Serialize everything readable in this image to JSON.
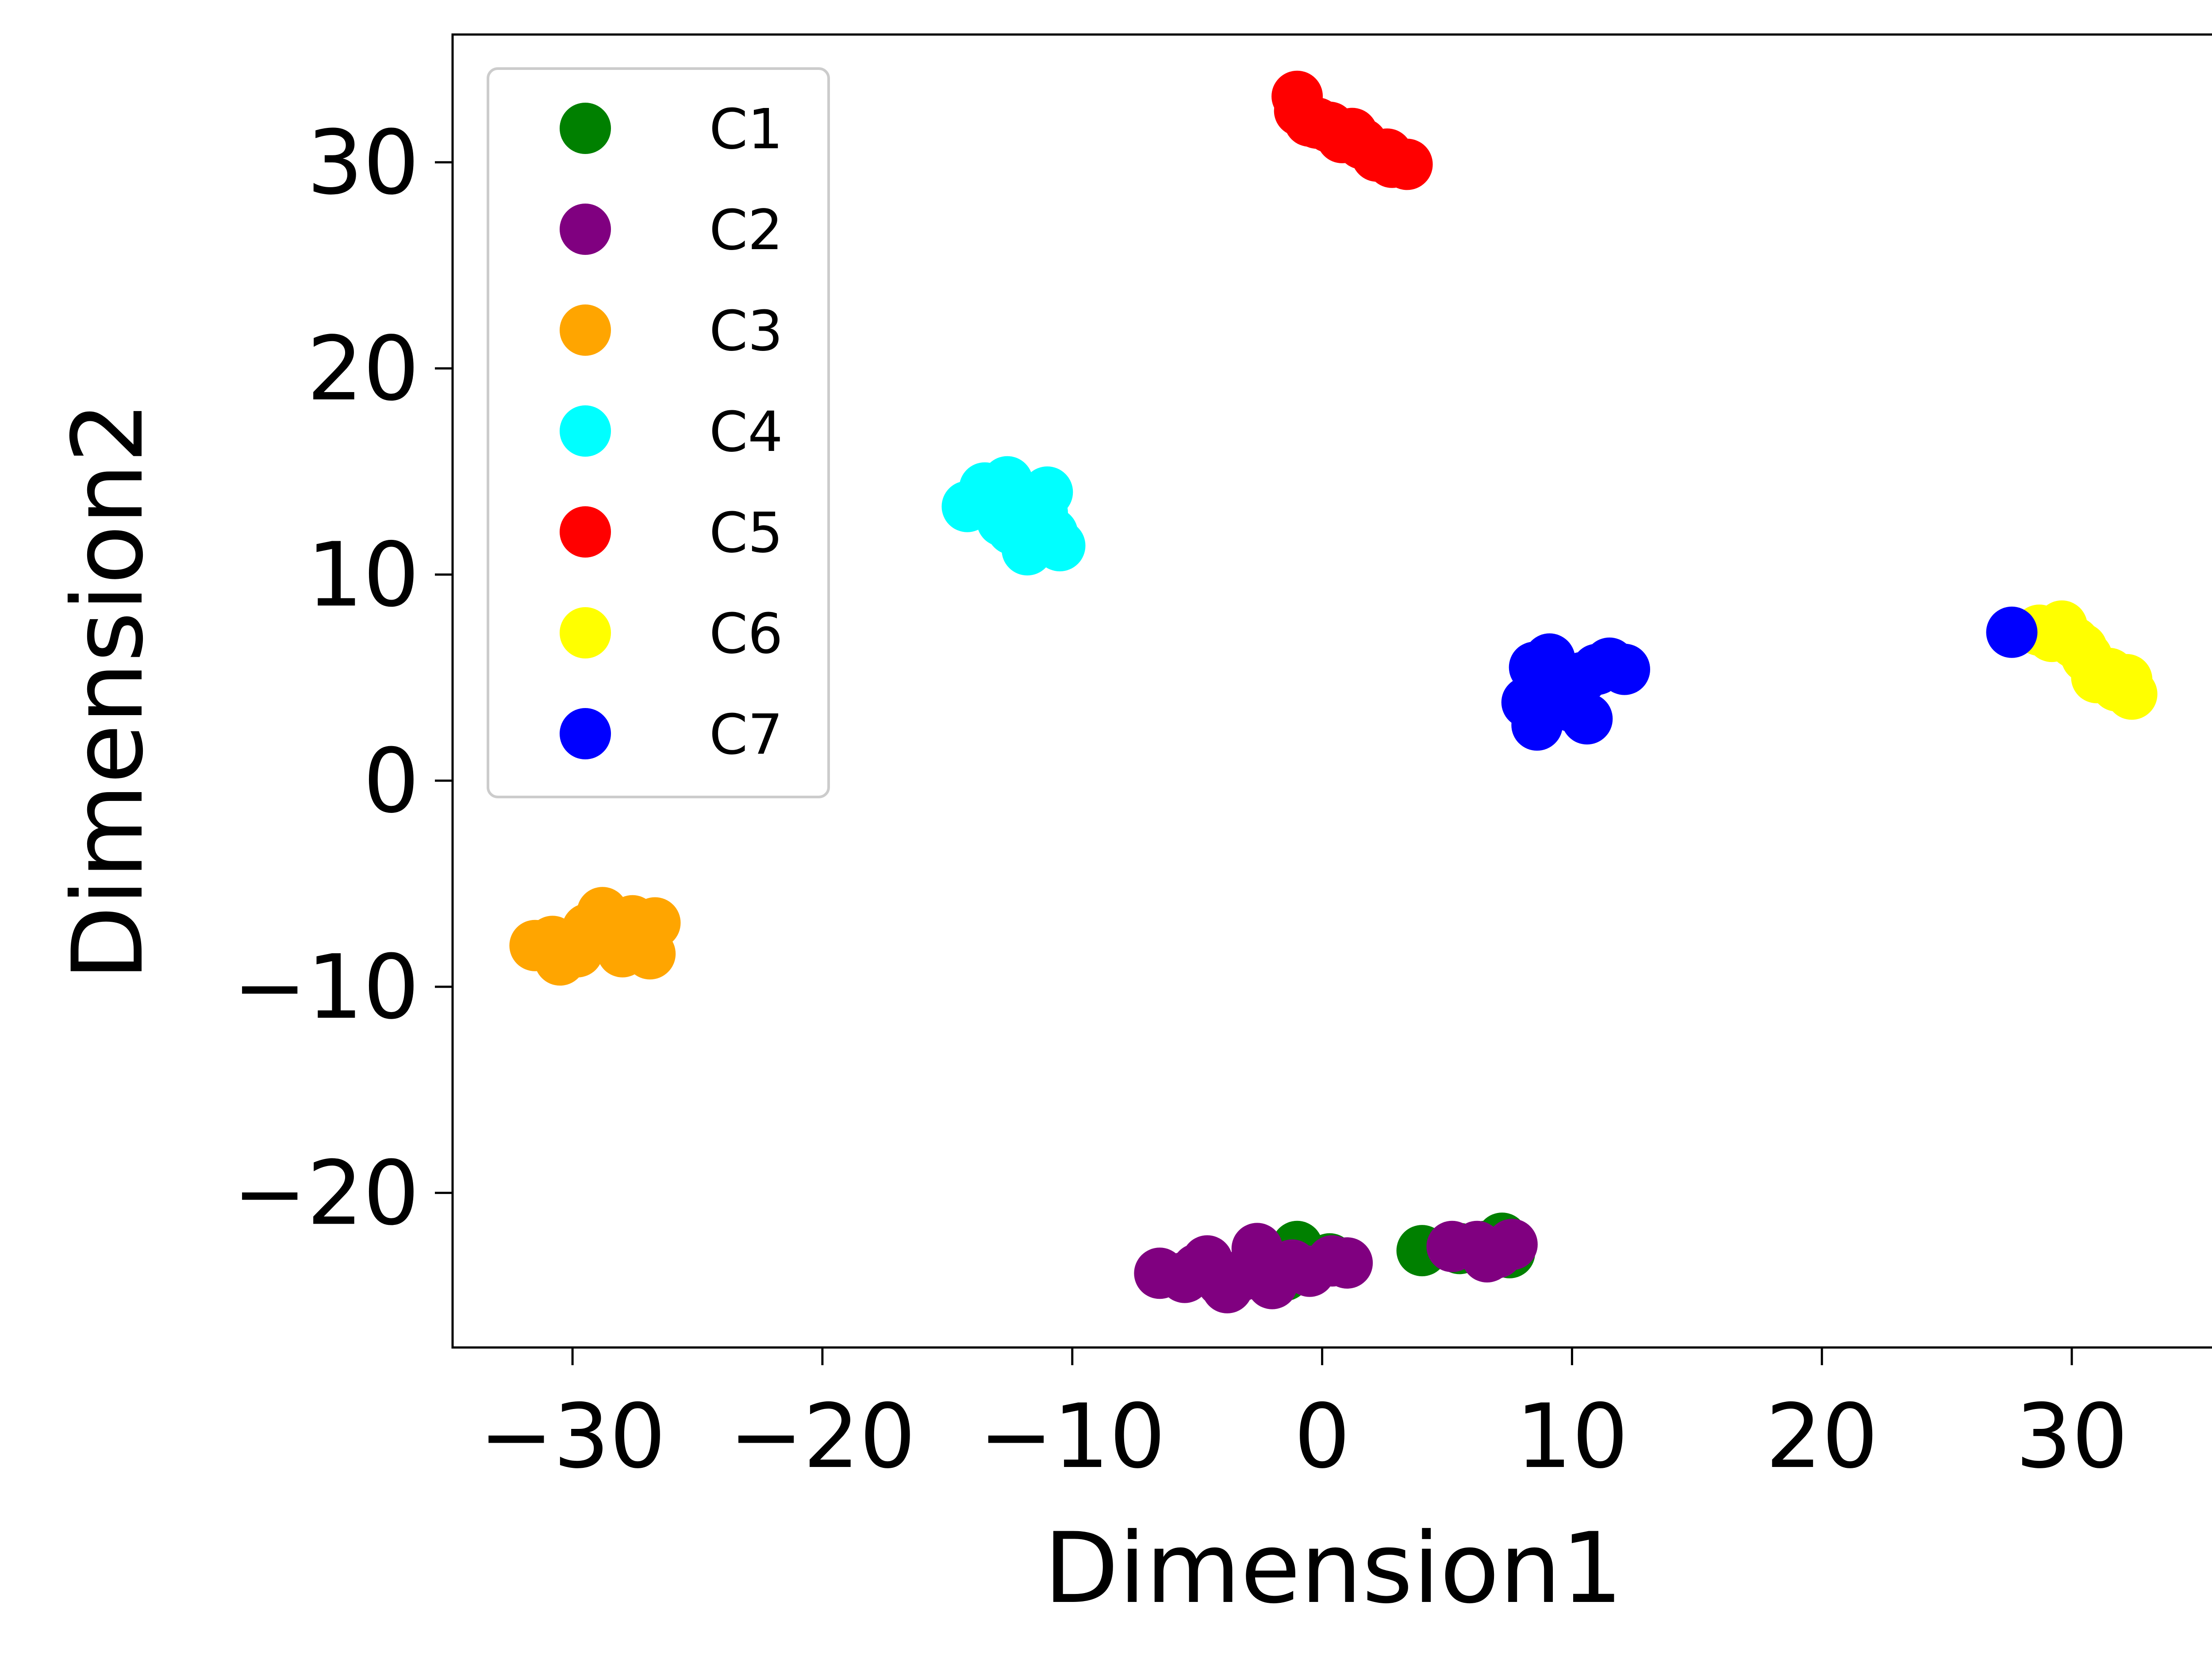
{
  "chart_data": {
    "type": "scatter",
    "xlabel": "Dimension1",
    "ylabel": "Dimension2",
    "xlim": [
      -34.8,
      35.7
    ],
    "ylim": [
      -27.5,
      36.2
    ],
    "xticks": [
      -30,
      -20,
      -10,
      0,
      10,
      20,
      30
    ],
    "xtick_labels": [
      "−30",
      "−20",
      "−10",
      "0",
      "10",
      "20",
      "30"
    ],
    "yticks": [
      -20,
      -10,
      0,
      10,
      20,
      30
    ],
    "ytick_labels": [
      "−20",
      "−10",
      "0",
      "10",
      "20",
      "30"
    ],
    "grid": false,
    "legend_position": "top-left",
    "series": [
      {
        "name": "C1",
        "color": "#008000",
        "points": [
          [
            -1.0,
            -22.6
          ],
          [
            -1.5,
            -24.0
          ],
          [
            -0.5,
            -23.4
          ],
          [
            0.3,
            -23.2
          ],
          [
            -2.0,
            -24.3
          ],
          [
            4.0,
            -22.8
          ],
          [
            5.5,
            -22.7
          ],
          [
            7.2,
            -22.2
          ],
          [
            7.5,
            -22.9
          ],
          [
            6.5,
            -22.6
          ]
        ]
      },
      {
        "name": "C2",
        "color": "#800080",
        "points": [
          [
            -6.5,
            -23.9
          ],
          [
            -5.5,
            -24.1
          ],
          [
            -4.6,
            -23.3
          ],
          [
            -4.0,
            -24.3
          ],
          [
            -3.2,
            -24.0
          ],
          [
            -2.6,
            -22.7
          ],
          [
            -2.0,
            -24.4
          ],
          [
            -1.2,
            -23.5
          ],
          [
            -0.5,
            -23.8
          ],
          [
            0.4,
            -23.3
          ],
          [
            1.0,
            -23.4
          ],
          [
            -3.8,
            -24.6
          ],
          [
            -5.0,
            -23.7
          ],
          [
            5.2,
            -22.6
          ],
          [
            6.2,
            -22.6
          ],
          [
            7.0,
            -22.9
          ],
          [
            7.6,
            -22.5
          ],
          [
            6.6,
            -23.1
          ]
        ]
      },
      {
        "name": "C3",
        "color": "#ffa500",
        "points": [
          [
            -31.5,
            -8.0
          ],
          [
            -30.5,
            -8.7
          ],
          [
            -29.8,
            -8.3
          ],
          [
            -29.0,
            -7.6
          ],
          [
            -28.8,
            -6.4
          ],
          [
            -28.0,
            -8.3
          ],
          [
            -27.6,
            -6.8
          ],
          [
            -27.0,
            -7.4
          ],
          [
            -26.7,
            -6.9
          ],
          [
            -26.9,
            -8.4
          ],
          [
            -30.8,
            -7.8
          ],
          [
            -29.4,
            -7.2
          ]
        ]
      },
      {
        "name": "C4",
        "color": "#00ffff",
        "points": [
          [
            -14.2,
            13.3
          ],
          [
            -13.5,
            14.2
          ],
          [
            -12.8,
            12.6
          ],
          [
            -12.6,
            14.5
          ],
          [
            -12.0,
            13.6
          ],
          [
            -11.8,
            11.2
          ],
          [
            -11.5,
            12.6
          ],
          [
            -11.0,
            14.0
          ],
          [
            -10.8,
            12.0
          ],
          [
            -10.5,
            11.4
          ],
          [
            -12.4,
            12.2
          ],
          [
            -11.2,
            13.0
          ],
          [
            -13.0,
            13.2
          ]
        ]
      },
      {
        "name": "C5",
        "color": "#ff0000",
        "points": [
          [
            -1.0,
            33.2
          ],
          [
            -0.9,
            32.5
          ],
          [
            -0.5,
            32.0
          ],
          [
            0.3,
            31.7
          ],
          [
            0.8,
            31.2
          ],
          [
            1.6,
            30.9
          ],
          [
            2.2,
            30.3
          ],
          [
            2.8,
            30.0
          ],
          [
            3.4,
            29.9
          ],
          [
            1.2,
            31.4
          ],
          [
            -0.2,
            31.9
          ],
          [
            2.6,
            30.4
          ]
        ]
      },
      {
        "name": "C6",
        "color": "#ffff00",
        "points": [
          [
            28.7,
            7.3
          ],
          [
            29.6,
            7.5
          ],
          [
            30.1,
            6.7
          ],
          [
            30.6,
            6.0
          ],
          [
            31.0,
            5.0
          ],
          [
            31.5,
            5.2
          ],
          [
            32.2,
            4.9
          ],
          [
            32.4,
            4.2
          ],
          [
            31.8,
            4.6
          ],
          [
            30.4,
            6.4
          ],
          [
            29.2,
            7.0
          ]
        ]
      },
      {
        "name": "C7",
        "color": "#0000ff",
        "points": [
          [
            8.2,
            3.8
          ],
          [
            8.5,
            5.5
          ],
          [
            8.6,
            2.7
          ],
          [
            9.1,
            5.9
          ],
          [
            9.5,
            4.6
          ],
          [
            10.0,
            3.6
          ],
          [
            10.4,
            5.0
          ],
          [
            10.6,
            3.0
          ],
          [
            11.0,
            5.4
          ],
          [
            11.5,
            5.7
          ],
          [
            12.1,
            5.4
          ],
          [
            9.7,
            4.2
          ],
          [
            27.6,
            7.2
          ]
        ]
      }
    ]
  }
}
